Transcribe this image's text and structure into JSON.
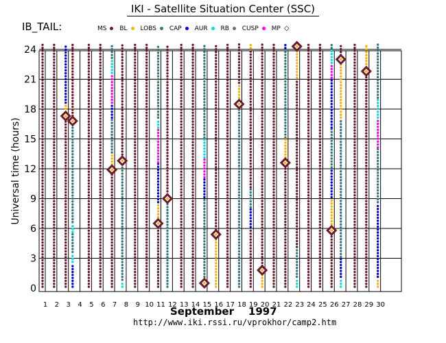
{
  "title": "IKI - Satellite Situation Center (SSC)",
  "dataset_label": "IB_TAIL:",
  "legend": [
    {
      "name": "MS",
      "color": "#6b1a2a"
    },
    {
      "name": "BL",
      "color": "#ffb000"
    },
    {
      "name": "LOBS",
      "color": "#2e7a7a"
    },
    {
      "name": "CAP",
      "color": "#0000e0"
    },
    {
      "name": "AUR",
      "color": "#00e0e0"
    },
    {
      "name": "RB",
      "color": "#707070"
    },
    {
      "name": "CUSP",
      "color": "#ff00ff"
    },
    {
      "name": "MP",
      "icon": "diamond-icon"
    }
  ],
  "url": "http://www.iki.rssi.ru/vprokhor/camp2.htm",
  "chart_data": {
    "type": "scatter",
    "title": "IKI - Satellite Situation Center (SSC)",
    "xlabel": "September    1997",
    "ylabel": "Universal time (hours)",
    "xlim": [
      1,
      30
    ],
    "ylim": [
      0,
      24
    ],
    "x_ticks": [
      "1",
      "2",
      "3",
      "4",
      "5",
      "6",
      "7",
      "8",
      "9",
      "10",
      "11",
      "12",
      "13",
      "14",
      "15",
      "16",
      "17",
      "18",
      "19",
      "20",
      "21",
      "22",
      "23",
      "24",
      "25",
      "26",
      "27",
      "28",
      "29",
      "30"
    ],
    "y_ticks": [
      "0",
      "3",
      "6",
      "9",
      "12",
      "15",
      "18",
      "21",
      "24"
    ],
    "grid": true,
    "colors": {
      "MS": "#6b1a2a",
      "BL": "#ffb000",
      "LOBS": "#2e7a7a",
      "CAP": "#0000e0",
      "AUR": "#00e0e0",
      "RB": "#707070",
      "CUSP": "#ff00ff",
      "MP": "#6b1a2a"
    },
    "tracks": [
      {
        "x": 1,
        "segments": [
          [
            0,
            24.5,
            "MS"
          ]
        ]
      },
      {
        "x": 2,
        "segments": [
          [
            0,
            24.5,
            "MS"
          ]
        ]
      },
      {
        "x": 3,
        "segments": [
          [
            0,
            17,
            "MS"
          ],
          [
            17,
            18.5,
            "BL"
          ],
          [
            18.5,
            24.5,
            "CAP"
          ]
        ]
      },
      {
        "x": 3.6,
        "segments": [
          [
            0,
            2.5,
            "CAP"
          ],
          [
            2.5,
            3.5,
            "AUR"
          ],
          [
            3.5,
            5.5,
            "LOBS"
          ],
          [
            5.5,
            6.5,
            "AUR"
          ],
          [
            6.5,
            16.6,
            "LOBS"
          ],
          [
            16.6,
            24.5,
            "MS"
          ]
        ]
      },
      {
        "x": 5,
        "segments": [
          [
            0,
            24.5,
            "MS"
          ]
        ]
      },
      {
        "x": 6,
        "segments": [
          [
            0,
            24.5,
            "MS"
          ]
        ]
      },
      {
        "x": 7,
        "segments": [
          [
            0,
            12,
            "MS"
          ],
          [
            12,
            13.5,
            "BL"
          ],
          [
            13.5,
            17,
            "LOBS"
          ],
          [
            17,
            18.5,
            "CAP"
          ],
          [
            18.5,
            21.5,
            "CUSP"
          ],
          [
            21.5,
            23,
            "AUR"
          ],
          [
            23,
            24.5,
            "LOBS"
          ]
        ]
      },
      {
        "x": 7.9,
        "segments": [
          [
            0,
            0.7,
            "AUR"
          ],
          [
            0.7,
            12.7,
            "LOBS"
          ],
          [
            12.7,
            24.5,
            "MS"
          ]
        ]
      },
      {
        "x": 9,
        "segments": [
          [
            0,
            24.5,
            "MS"
          ]
        ]
      },
      {
        "x": 10,
        "segments": [
          [
            0,
            24.5,
            "MS"
          ]
        ]
      },
      {
        "x": 11,
        "segments": [
          [
            0,
            6.7,
            "MS"
          ],
          [
            6.7,
            8.5,
            "BL"
          ],
          [
            8.5,
            12.5,
            "CAP"
          ],
          [
            12.5,
            16,
            "CUSP"
          ],
          [
            16,
            17,
            "AUR"
          ],
          [
            17,
            24.5,
            "LOBS"
          ]
        ]
      },
      {
        "x": 11.8,
        "segments": [
          [
            0,
            9,
            "LOBS"
          ],
          [
            9,
            24.5,
            "MS"
          ]
        ]
      },
      {
        "x": 13,
        "segments": [
          [
            0,
            24.5,
            "MS"
          ]
        ]
      },
      {
        "x": 14,
        "segments": [
          [
            0,
            24.5,
            "MS"
          ]
        ]
      },
      {
        "x": 15,
        "segments": [
          [
            0,
            1,
            "BL"
          ],
          [
            1,
            9,
            "LOBS"
          ],
          [
            9,
            11,
            "CAP"
          ],
          [
            11,
            13,
            "CUSP"
          ],
          [
            13,
            15,
            "AUR"
          ],
          [
            15,
            24.5,
            "LOBS"
          ]
        ]
      },
      {
        "x": 16,
        "segments": [
          [
            0,
            5.2,
            "BL"
          ],
          [
            5.2,
            24.5,
            "MS"
          ]
        ]
      },
      {
        "x": 17,
        "segments": [
          [
            0,
            24.5,
            "MS"
          ]
        ]
      },
      {
        "x": 18,
        "segments": [
          [
            0,
            18.4,
            "LOBS"
          ],
          [
            18.4,
            20.5,
            "BL"
          ],
          [
            20.5,
            24.5,
            "MS"
          ]
        ]
      },
      {
        "x": 19,
        "segments": [
          [
            0,
            6,
            "MS"
          ],
          [
            6,
            8,
            "CAP"
          ],
          [
            8,
            10,
            "LOBS"
          ],
          [
            10,
            24,
            "MS"
          ],
          [
            24,
            24.5,
            "BL"
          ]
        ]
      },
      {
        "x": 20,
        "segments": [
          [
            0,
            1.8,
            "BL"
          ],
          [
            1.8,
            24.5,
            "MS"
          ]
        ]
      },
      {
        "x": 21,
        "segments": [
          [
            0,
            24.5,
            "MS"
          ]
        ]
      },
      {
        "x": 22,
        "segments": [
          [
            0,
            12.7,
            "MS"
          ],
          [
            12.7,
            15,
            "BL"
          ],
          [
            15,
            24,
            "LOBS"
          ],
          [
            24,
            24.5,
            "CAP"
          ]
        ]
      },
      {
        "x": 23,
        "segments": [
          [
            0,
            1,
            "AUR"
          ],
          [
            1,
            4,
            "LOBS"
          ],
          [
            4,
            21,
            "MS"
          ],
          [
            21,
            24.2,
            "BL"
          ]
        ]
      },
      {
        "x": 24,
        "segments": [
          [
            0,
            24.5,
            "MS"
          ]
        ]
      },
      {
        "x": 25,
        "segments": [
          [
            0,
            24.5,
            "MS"
          ]
        ]
      },
      {
        "x": 26,
        "segments": [
          [
            0,
            6,
            "MS"
          ],
          [
            6,
            9,
            "BL"
          ],
          [
            9,
            12,
            "CAP"
          ],
          [
            12,
            16,
            "LOBS"
          ],
          [
            16,
            21,
            "CAP"
          ],
          [
            21,
            22.5,
            "CUSP"
          ],
          [
            22.5,
            24,
            "AUR"
          ],
          [
            24,
            24.5,
            "LOBS"
          ]
        ]
      },
      {
        "x": 26.8,
        "segments": [
          [
            0,
            1,
            "AUR"
          ],
          [
            1,
            3,
            "CAP"
          ],
          [
            3,
            17,
            "LOBS"
          ],
          [
            17,
            23,
            "BL"
          ],
          [
            23,
            24.5,
            "MS"
          ]
        ]
      },
      {
        "x": 28,
        "segments": [
          [
            0,
            24.5,
            "MS"
          ]
        ]
      },
      {
        "x": 29,
        "segments": [
          [
            0,
            21.8,
            "MS"
          ],
          [
            21.8,
            24.5,
            "BL"
          ]
        ]
      },
      {
        "x": 30,
        "segments": [
          [
            0,
            1,
            "BL"
          ],
          [
            1,
            8.5,
            "CAP"
          ],
          [
            8.5,
            14,
            "LOBS"
          ],
          [
            14,
            17,
            "CUSP"
          ],
          [
            17,
            19,
            "AUR"
          ],
          [
            19,
            24.5,
            "LOBS"
          ]
        ]
      }
    ],
    "mp_crossings": [
      {
        "x": 3,
        "y": 17.3
      },
      {
        "x": 3.6,
        "y": 16.8
      },
      {
        "x": 7,
        "y": 11.9
      },
      {
        "x": 7.9,
        "y": 12.8
      },
      {
        "x": 11,
        "y": 6.5
      },
      {
        "x": 11.8,
        "y": 9
      },
      {
        "x": 15,
        "y": 0.5
      },
      {
        "x": 16,
        "y": 5.4
      },
      {
        "x": 18,
        "y": 18.5
      },
      {
        "x": 20,
        "y": 1.8
      },
      {
        "x": 22,
        "y": 12.6
      },
      {
        "x": 23,
        "y": 24.3
      },
      {
        "x": 26,
        "y": 5.8
      },
      {
        "x": 26.8,
        "y": 23
      },
      {
        "x": 29,
        "y": 21.8
      }
    ]
  }
}
